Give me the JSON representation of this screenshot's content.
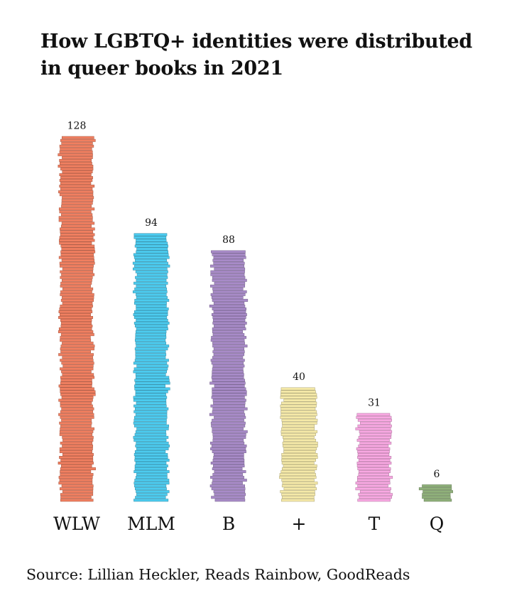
{
  "title": "How LGBTQ+ identities were distributed in queer books in 2021",
  "source": "Source: Lillian Heckler, Reads Rainbow, GoodReads",
  "chart_data": {
    "type": "bar",
    "title": "How LGBTQ+ identities were distributed in queer books in 2021",
    "xlabel": "",
    "ylabel": "",
    "ylim": [
      0,
      128
    ],
    "grid": false,
    "legend": "none",
    "unit_note": "each stacked book spine represents one book",
    "categories": [
      "WLW",
      "MLM",
      "B",
      "+",
      "T",
      "Q"
    ],
    "values": [
      128,
      94,
      88,
      40,
      31,
      6
    ],
    "colors": [
      "#f07f60",
      "#4ccbef",
      "#a88bc8",
      "#f5e9a8",
      "#f8a8e2",
      "#8fb07a"
    ]
  }
}
